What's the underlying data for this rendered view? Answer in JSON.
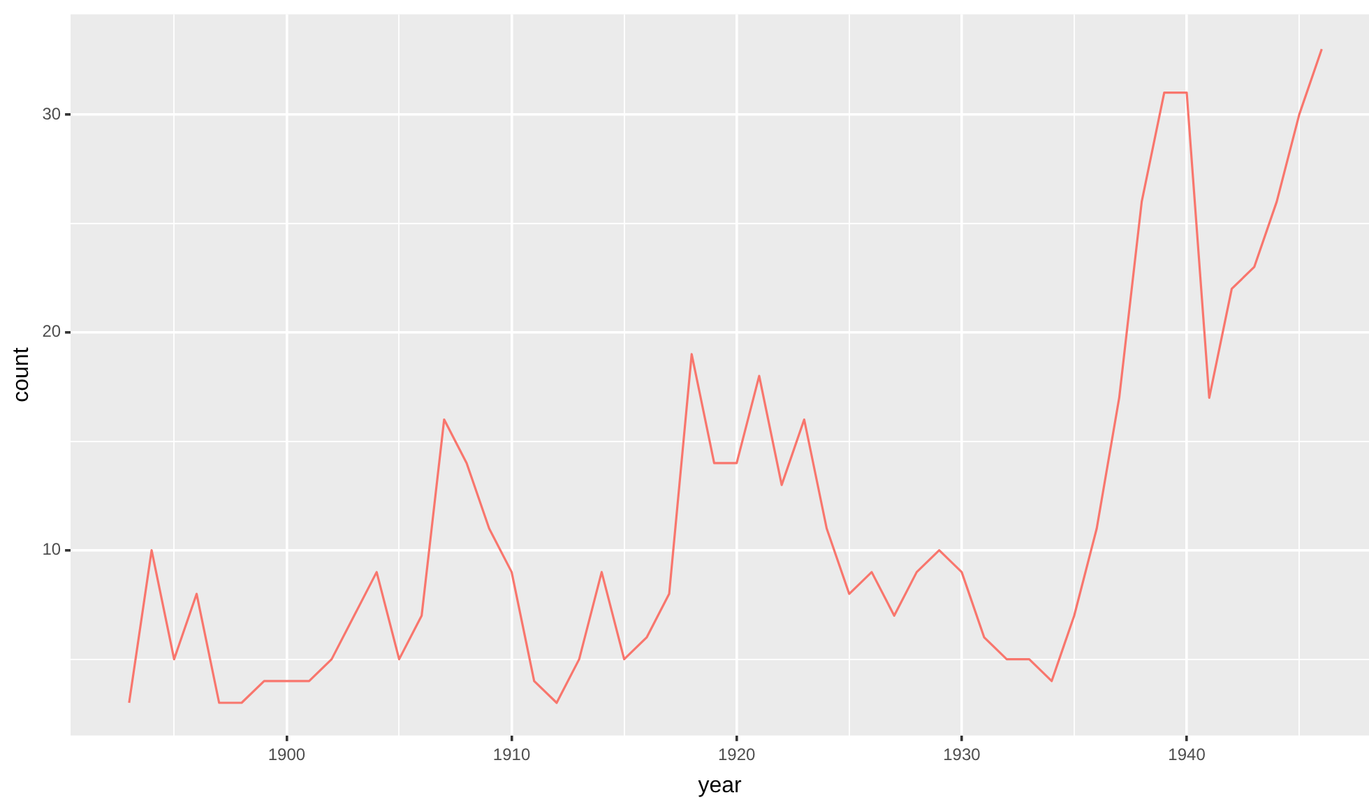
{
  "chart_data": {
    "type": "line",
    "xlabel": "year",
    "ylabel": "count",
    "x": [
      1893,
      1894,
      1895,
      1896,
      1897,
      1898,
      1899,
      1900,
      1901,
      1902,
      1903,
      1904,
      1905,
      1906,
      1907,
      1908,
      1909,
      1910,
      1911,
      1912,
      1913,
      1914,
      1915,
      1916,
      1917,
      1918,
      1919,
      1920,
      1921,
      1922,
      1923,
      1924,
      1925,
      1926,
      1927,
      1928,
      1929,
      1930,
      1931,
      1932,
      1933,
      1934,
      1935,
      1936,
      1937,
      1938,
      1939,
      1940,
      1941,
      1942,
      1943,
      1944,
      1945,
      1946
    ],
    "series": [
      {
        "color": "#f8766d",
        "values": [
          3,
          10,
          5,
          8,
          3,
          3,
          4,
          4,
          4,
          5,
          7,
          9,
          5,
          7,
          16,
          14,
          11,
          9,
          4,
          3,
          5,
          9,
          5,
          6,
          8,
          19,
          14,
          14,
          18,
          13,
          16,
          11,
          8,
          9,
          7,
          9,
          10,
          9,
          6,
          5,
          5,
          4,
          7,
          11,
          17,
          26,
          31,
          31,
          17,
          22,
          23,
          26,
          30,
          33
        ]
      }
    ],
    "xlim": [
      1890.4,
      1948.1
    ],
    "xticks": [
      {
        "value": 1895,
        "label": null
      },
      1900,
      {
        "value": 1905,
        "label": null
      },
      1910,
      {
        "value": 1915,
        "label": null
      },
      1920,
      {
        "value": 1925,
        "label": null
      },
      1930,
      {
        "value": 1935,
        "label": null
      },
      1940,
      {
        "value": 1945,
        "label": null
      }
    ],
    "ylim": [
      1.5,
      34.6
    ],
    "yticks": [
      {
        "value": 5,
        "label": null
      },
      10,
      {
        "value": 15,
        "label": null
      },
      20,
      {
        "value": 25,
        "label": null
      },
      30
    ],
    "grid": true,
    "legend": false,
    "marker": "none",
    "line_style": "solid"
  }
}
